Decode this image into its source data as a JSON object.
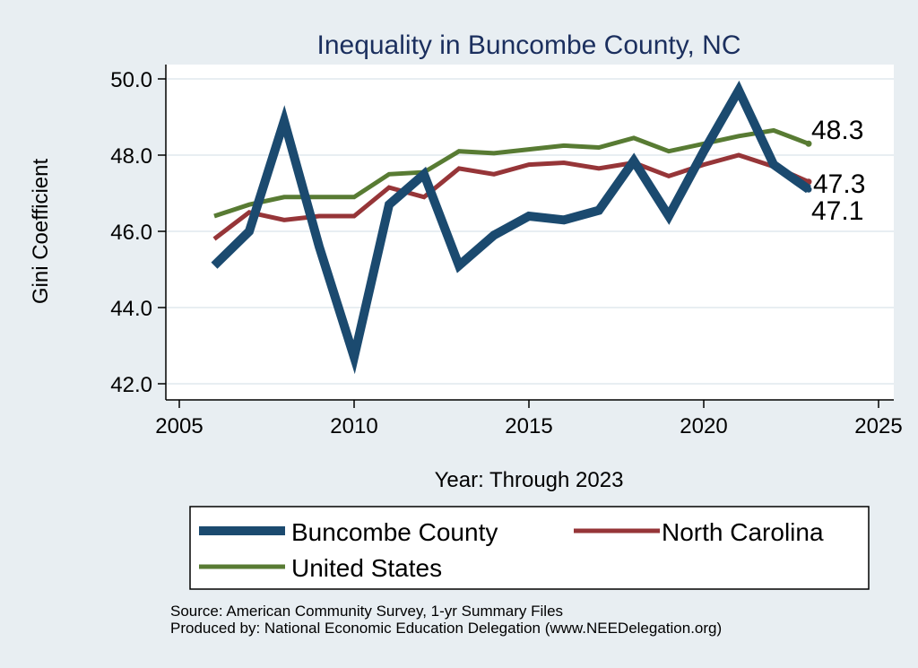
{
  "chart_data": {
    "type": "line",
    "title": "Inequality in Buncombe County, NC",
    "xlabel": "Year: Through 2023",
    "ylabel": "Gini Coefficient",
    "xlim": [
      2005,
      2025
    ],
    "ylim": [
      42,
      50
    ],
    "xticks": [
      2005,
      2010,
      2015,
      2020,
      2025
    ],
    "yticks": [
      "42.0",
      "44.0",
      "46.0",
      "48.0",
      "50.0"
    ],
    "x": [
      2006,
      2007,
      2008,
      2009,
      2010,
      2011,
      2012,
      2013,
      2014,
      2015,
      2016,
      2017,
      2018,
      2019,
      2020,
      2021,
      2022,
      2023
    ],
    "series": [
      {
        "name": "Buncombe County",
        "color": "#1b4a6f",
        "end_label": "47.1",
        "values": [
          45.1,
          46.0,
          48.9,
          45.6,
          42.7,
          46.7,
          47.5,
          45.1,
          45.9,
          46.4,
          46.3,
          46.55,
          47.85,
          46.4,
          48.1,
          49.7,
          47.75,
          47.1
        ]
      },
      {
        "name": "North Carolina",
        "color": "#963538",
        "end_label": "47.3",
        "values": [
          45.8,
          46.5,
          46.3,
          46.4,
          46.4,
          47.15,
          46.9,
          47.65,
          47.5,
          47.75,
          47.8,
          47.65,
          47.8,
          47.45,
          47.75,
          48.0,
          47.7,
          47.3
        ]
      },
      {
        "name": "United States",
        "color": "#587b33",
        "end_label": "48.3",
        "values": [
          46.4,
          46.7,
          46.9,
          46.9,
          46.9,
          47.5,
          47.55,
          48.1,
          48.05,
          48.15,
          48.25,
          48.2,
          48.45,
          48.1,
          48.3,
          48.5,
          48.65,
          48.3
        ]
      }
    ],
    "legend": {
      "position": "bottom",
      "items": [
        "Buncombe County",
        "North Carolina",
        "United States"
      ]
    }
  },
  "source_lines": [
    "Source: American Community Survey, 1-yr Summary Files",
    "Produced by: National Economic Education Delegation (www.NEEDelegation.org)"
  ],
  "colors": {
    "background": "#e8eef2",
    "plot_bg": "#ffffff",
    "grid": "#e8eef2",
    "title": "#1b2f5e"
  }
}
